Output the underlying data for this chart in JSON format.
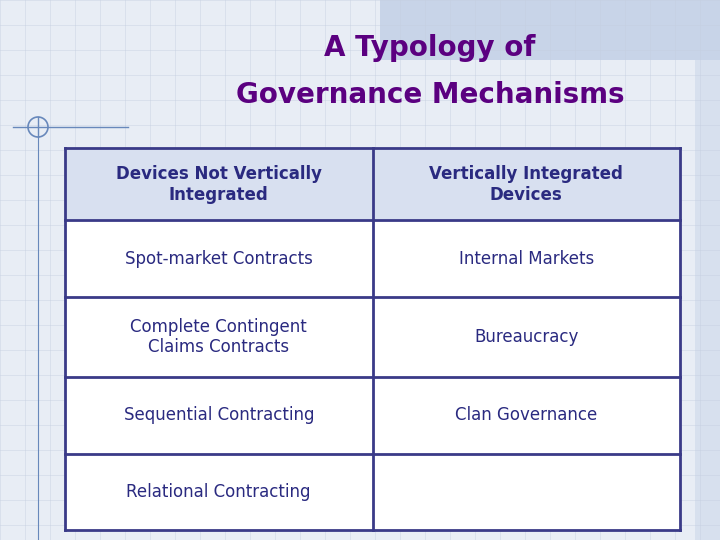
{
  "title_line1": "A Typology of",
  "title_line2": "Governance Mechanisms",
  "title_color": "#5B0080",
  "title_fontsize": 20,
  "title_fontweight": "bold",
  "background_color": "#e8edf5",
  "table_bg_color": "#ffffff",
  "header_bg_color": "#d8e0f0",
  "grid_color": "#3a3a88",
  "header_text_color": "#2a2a80",
  "cell_text_color": "#2a2a80",
  "col1_header": "Devices Not Vertically\nIntegrated",
  "col2_header": "Vertically Integrated\nDevices",
  "rows": [
    [
      "Spot-market Contracts",
      "Internal Markets"
    ],
    [
      "Complete Contingent\nClaims Contracts",
      "Bureaucracy"
    ],
    [
      "Sequential Contracting",
      "Clan Governance"
    ],
    [
      "Relational Contracting",
      ""
    ]
  ],
  "header_fontsize": 12,
  "cell_fontsize": 12,
  "top_rect_color": "#c8d4e8",
  "crosshair_color": "#6888bb"
}
